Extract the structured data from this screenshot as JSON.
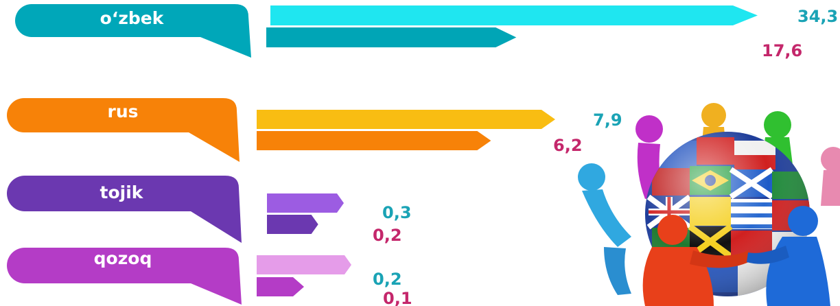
{
  "chart_data": {
    "type": "bar",
    "orientation": "horizontal",
    "categories": [
      "o‘zbek",
      "rus",
      "tojik",
      "qozoq"
    ],
    "series": [
      {
        "values": [
          34.3,
          7.9,
          0.3,
          0.2
        ],
        "labels": [
          "34,3",
          "7,9",
          "0,3",
          "0,2"
        ]
      },
      {
        "values": [
          17.6,
          6.2,
          0.2,
          0.1
        ],
        "labels": [
          "17,6",
          "6,2",
          "0,2",
          "0,1"
        ]
      }
    ],
    "label_colors": [
      "#1aa3b5",
      "#c4276b"
    ],
    "category_colors": [
      {
        "callout": "#00a7b9",
        "bar1": "#1fe6f0",
        "bar2": "#00a5b6"
      },
      {
        "callout": "#f78208",
        "bar1": "#f9bd12",
        "bar2": "#f78208"
      },
      {
        "callout": "#6b38b0",
        "bar1": "#9c5ce2",
        "bar2": "#6b38b0"
      },
      {
        "callout": "#b43cc6",
        "bar1": "#e59ce9",
        "bar2": "#b43cc6"
      }
    ],
    "title": "",
    "xlabel": "",
    "ylabel": "",
    "legend": "none",
    "grid": false
  }
}
